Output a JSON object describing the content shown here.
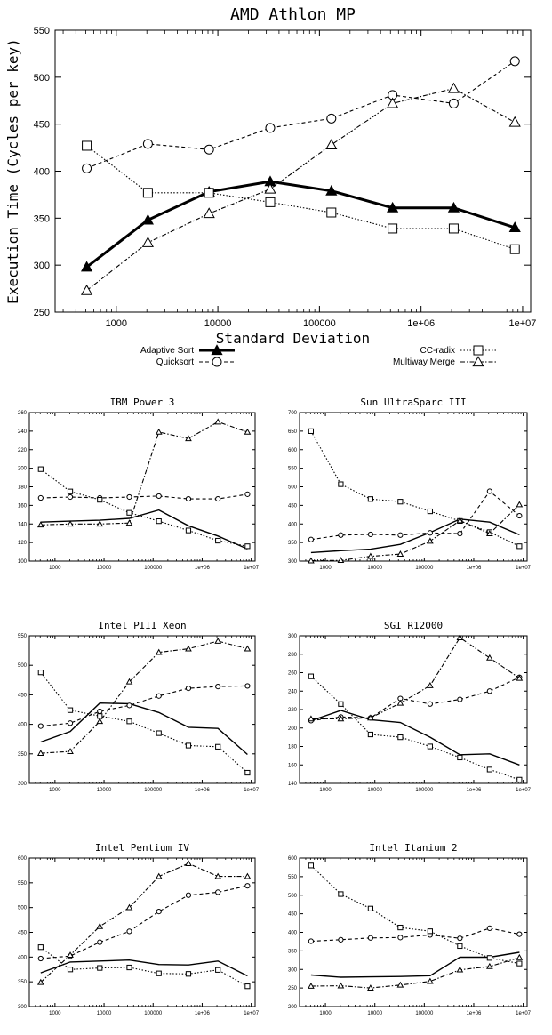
{
  "chart_data": [
    {
      "type": "line",
      "title": "AMD Athlon MP",
      "xlabel": "Standard Deviation",
      "ylabel": "Execution Time  (Cycles per key)",
      "xscale": "log",
      "xlim": [
        250,
        12000000
      ],
      "ylim": [
        250,
        550
      ],
      "yticks": [
        250,
        300,
        350,
        400,
        450,
        500,
        550
      ],
      "xticks": [
        1000,
        10000,
        100000,
        1000000,
        10000000
      ],
      "xtick_labels": [
        "1000",
        "10000",
        "100000",
        "1e+06",
        "1e+07"
      ],
      "grid": false,
      "legend": "below",
      "x": [
        512,
        2048,
        8192,
        32768,
        131072,
        524288,
        2097152,
        8388608
      ],
      "series": [
        {
          "name": "Adaptive Sort",
          "style": "solid-bold",
          "marker": "triangle-filled",
          "values": [
            298,
            348,
            378,
            389,
            379,
            361,
            361,
            340
          ]
        },
        {
          "name": "Quicksort",
          "style": "dashed",
          "marker": "circle",
          "values": [
            403,
            429,
            423,
            446,
            456,
            481,
            472,
            517
          ]
        },
        {
          "name": "CC-radix",
          "style": "dotted",
          "marker": "square",
          "values": [
            427,
            377,
            377,
            367,
            356,
            339,
            339,
            317
          ]
        },
        {
          "name": "Multiway Merge",
          "style": "dashdot",
          "marker": "triangle",
          "values": [
            273,
            324,
            355,
            381,
            428,
            472,
            488,
            452
          ]
        }
      ]
    },
    {
      "type": "line",
      "title": "IBM Power 3",
      "xscale": "log",
      "xlim": [
        300,
        12000000
      ],
      "ylim": [
        100,
        260
      ],
      "yticks": [
        100,
        120,
        140,
        160,
        180,
        200,
        220,
        240,
        260
      ],
      "xticks": [
        1000,
        10000,
        100000,
        1000000,
        10000000
      ],
      "xtick_labels": [
        "1000",
        "10000",
        "100000",
        "1e+06",
        "1e+07"
      ],
      "x": [
        512,
        2048,
        8192,
        32768,
        131072,
        524288,
        2097152,
        8388608
      ],
      "series": [
        {
          "style": "solid",
          "marker": "none",
          "values": [
            142,
            143,
            144,
            146,
            155,
            138,
            127,
            113
          ]
        },
        {
          "style": "dashed",
          "marker": "circle",
          "values": [
            168,
            169,
            168,
            169,
            170,
            167,
            167,
            172
          ]
        },
        {
          "style": "dotted",
          "marker": "square",
          "values": [
            199,
            175,
            166,
            152,
            143,
            133,
            122,
            116
          ]
        },
        {
          "style": "dashdot",
          "marker": "triangle",
          "values": [
            139,
            140,
            140,
            141,
            239,
            232,
            250,
            239
          ]
        }
      ]
    },
    {
      "type": "line",
      "title": "Sun UltraSparc III",
      "xscale": "log",
      "xlim": [
        300,
        12000000
      ],
      "ylim": [
        300,
        700
      ],
      "yticks": [
        300,
        350,
        400,
        450,
        500,
        550,
        600,
        650,
        700
      ],
      "xticks": [
        1000,
        10000,
        100000,
        1000000,
        10000000
      ],
      "xtick_labels": [
        "1000",
        "10000",
        "100000",
        "1e+06",
        "1e+07"
      ],
      "x": [
        512,
        2048,
        8192,
        32768,
        131072,
        524288,
        2097152,
        8388608
      ],
      "series": [
        {
          "style": "solid",
          "marker": "none",
          "values": [
            323,
            328,
            332,
            345,
            377,
            413,
            405,
            371
          ]
        },
        {
          "style": "dashed",
          "marker": "circle",
          "values": [
            358,
            370,
            372,
            370,
            376,
            374,
            488,
            422
          ]
        },
        {
          "style": "dotted",
          "marker": "square",
          "values": [
            650,
            507,
            467,
            460,
            434,
            408,
            378,
            340
          ]
        },
        {
          "style": "dashdot",
          "marker": "triangle",
          "values": [
            301,
            302,
            313,
            319,
            354,
            409,
            374,
            452
          ]
        }
      ]
    },
    {
      "type": "line",
      "title": "Intel PIII Xeon",
      "xscale": "log",
      "xlim": [
        300,
        12000000
      ],
      "ylim": [
        300,
        550
      ],
      "yticks": [
        300,
        350,
        400,
        450,
        500,
        550
      ],
      "xticks": [
        1000,
        10000,
        100000,
        1000000,
        10000000
      ],
      "xtick_labels": [
        "1000",
        "10000",
        "100000",
        "1e+06",
        "1e+07"
      ],
      "x": [
        512,
        2048,
        8192,
        32768,
        131072,
        524288,
        2097152,
        8388608
      ],
      "series": [
        {
          "style": "solid",
          "marker": "none",
          "values": [
            370,
            388,
            436,
            435,
            420,
            395,
            393,
            349
          ]
        },
        {
          "style": "dashed",
          "marker": "circle",
          "values": [
            397,
            402,
            422,
            432,
            448,
            461,
            464,
            465
          ]
        },
        {
          "style": "dotted",
          "marker": "square",
          "values": [
            488,
            424,
            414,
            405,
            385,
            364,
            362,
            318
          ]
        },
        {
          "style": "dashdot",
          "marker": "triangle",
          "values": [
            351,
            354,
            405,
            472,
            522,
            528,
            541,
            528
          ]
        }
      ]
    },
    {
      "type": "line",
      "title": "SGI R12000",
      "xscale": "log",
      "xlim": [
        300,
        12000000
      ],
      "ylim": [
        140,
        300
      ],
      "yticks": [
        140,
        160,
        180,
        200,
        220,
        240,
        260,
        280,
        300
      ],
      "xticks": [
        1000,
        10000,
        100000,
        1000000,
        10000000
      ],
      "xtick_labels": [
        "1000",
        "10000",
        "100000",
        "1e+06",
        "1e+07"
      ],
      "x": [
        512,
        2048,
        8192,
        32768,
        131072,
        524288,
        2097152,
        8388608
      ],
      "series": [
        {
          "style": "solid",
          "marker": "none",
          "values": [
            208,
            219,
            209,
            206,
            190,
            171,
            172,
            160
          ]
        },
        {
          "style": "dashed",
          "marker": "circle",
          "values": [
            208,
            212,
            211,
            232,
            226,
            231,
            240,
            255
          ]
        },
        {
          "style": "dotted",
          "marker": "square",
          "values": [
            256,
            226,
            193,
            190,
            180,
            168,
            155,
            144
          ]
        },
        {
          "style": "dashdot",
          "marker": "triangle",
          "values": [
            210,
            210,
            211,
            227,
            246,
            298,
            276,
            254
          ]
        }
      ]
    },
    {
      "type": "line",
      "title": "Intel Pentium IV",
      "xscale": "log",
      "xlim": [
        300,
        12000000
      ],
      "ylim": [
        300,
        600
      ],
      "yticks": [
        300,
        350,
        400,
        450,
        500,
        550,
        600
      ],
      "xticks": [
        1000,
        10000,
        100000,
        1000000,
        10000000
      ],
      "xtick_labels": [
        "1000",
        "10000",
        "100000",
        "1e+06",
        "1e+07"
      ],
      "x": [
        512,
        2048,
        8192,
        32768,
        131072,
        524288,
        2097152,
        8388608
      ],
      "series": [
        {
          "style": "solid",
          "marker": "none",
          "values": [
            368,
            390,
            392,
            394,
            385,
            384,
            392,
            362
          ]
        },
        {
          "style": "dashed",
          "marker": "circle",
          "values": [
            397,
            402,
            430,
            452,
            492,
            525,
            531,
            544
          ]
        },
        {
          "style": "dotted",
          "marker": "square",
          "values": [
            420,
            375,
            378,
            379,
            367,
            366,
            374,
            341
          ]
        },
        {
          "style": "dashdot",
          "marker": "triangle",
          "values": [
            349,
            404,
            462,
            500,
            563,
            589,
            563,
            563
          ]
        }
      ]
    },
    {
      "type": "line",
      "title": "Intel Itanium 2",
      "xscale": "log",
      "xlim": [
        300,
        12000000
      ],
      "ylim": [
        200,
        600
      ],
      "yticks": [
        200,
        250,
        300,
        350,
        400,
        450,
        500,
        550,
        600
      ],
      "xticks": [
        1000,
        10000,
        100000,
        1000000,
        10000000
      ],
      "xtick_labels": [
        "1000",
        "10000",
        "100000",
        "1e+06",
        "1e+07"
      ],
      "x": [
        512,
        2048,
        8192,
        32768,
        131072,
        524288,
        2097152,
        8388608
      ],
      "series": [
        {
          "style": "solid",
          "marker": "none",
          "values": [
            285,
            279,
            280,
            281,
            283,
            333,
            333,
            346
          ]
        },
        {
          "style": "dashed",
          "marker": "circle",
          "values": [
            376,
            380,
            385,
            386,
            393,
            384,
            411,
            395
          ]
        },
        {
          "style": "dotted",
          "marker": "square",
          "values": [
            580,
            503,
            464,
            413,
            403,
            363,
            331,
            316
          ]
        },
        {
          "style": "dashdot",
          "marker": "triangle",
          "values": [
            255,
            256,
            250,
            258,
            268,
            299,
            308,
            332
          ]
        }
      ]
    }
  ]
}
